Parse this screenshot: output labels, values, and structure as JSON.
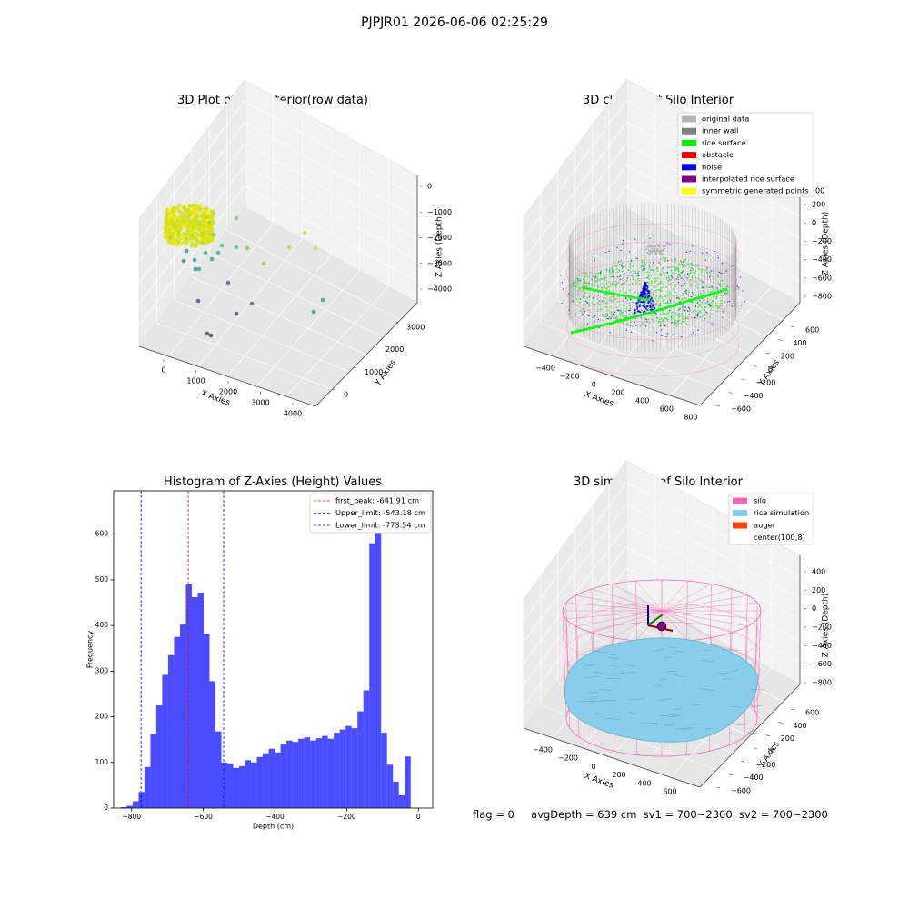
{
  "figure": {
    "suptitle": "PJPJR01 2026-06-06 02:25:29",
    "info": {
      "flag": "flag = 0",
      "avg_depth": "avgDepth = 639 cm",
      "sv1": "sv1 = 700~2300",
      "sv2": "sv2 = 700~2300"
    }
  },
  "chart_data": [
    {
      "type": "scatter",
      "title": "3D Plot of Silo Interior(row data)",
      "xlabel": "X Axies",
      "ylabel": "Y Axies",
      "zlabel": "Z Axies (Depth)",
      "x_ticks": [
        "0",
        "1000",
        "2000",
        "3000",
        "4000"
      ],
      "y_ticks": [
        "0",
        "1000",
        "2000",
        "3000"
      ],
      "z_ticks": [
        "0",
        "−1000",
        "−2000",
        "−3000",
        "−4000"
      ],
      "colormap": "viridis"
    },
    {
      "type": "scatter",
      "title": "3D classify of Silo Interior",
      "xlabel": "X Axies",
      "ylabel": "Y Axies",
      "zlabel": "Z Axies (Depth)",
      "x_ticks": [
        "−400",
        "−200",
        "0",
        "200",
        "400",
        "600",
        "800"
      ],
      "y_ticks": [
        "−600",
        "−400",
        "−200",
        "0",
        "200",
        "400",
        "600"
      ],
      "z_ticks": [
        "200",
        "0",
        "−200",
        "−400",
        "−600",
        "−800"
      ],
      "z_ticks_partial": "00",
      "legend": [
        {
          "label": "original data",
          "color": "#b4b4b4"
        },
        {
          "label": "inner wall",
          "color": "#808080"
        },
        {
          "label": "rice surface",
          "color": "#00ee00"
        },
        {
          "label": "obstacle",
          "color": "#ee0000"
        },
        {
          "label": "noise",
          "color": "#0000ee"
        },
        {
          "label": "interpolated rice surface",
          "color": "#800080"
        },
        {
          "label": "symmetric generated points",
          "color": "#ffff00"
        }
      ]
    },
    {
      "type": "bar",
      "title": "Histogram of Z-Axies (Height) Values",
      "xlabel": "Depth (cm)",
      "ylabel": "Frequency",
      "xlim": [
        -850,
        40
      ],
      "ylim": [
        0,
        695
      ],
      "x_ticks": [
        -800,
        -600,
        -400,
        -200,
        0
      ],
      "x_tick_labels": [
        "−800",
        "−600",
        "−400",
        "−200",
        "0"
      ],
      "y_ticks": [
        0,
        100,
        200,
        300,
        400,
        500,
        600
      ],
      "bin_start": -830,
      "bin_width": 16.5,
      "values": [
        2,
        5,
        15,
        35,
        90,
        162,
        225,
        292,
        335,
        375,
        402,
        490,
        462,
        472,
        382,
        278,
        168,
        100,
        98,
        88,
        92,
        105,
        100,
        112,
        120,
        130,
        122,
        140,
        148,
        145,
        152,
        155,
        148,
        153,
        158,
        152,
        165,
        172,
        180,
        175,
        212,
        258,
        580,
        660,
        165,
        95,
        58,
        28,
        113
      ],
      "bar_color": "#0000ff",
      "legend": [
        {
          "label": "first_peak: -641.91 cm",
          "value": -641.91,
          "color": "#ff0000"
        },
        {
          "label": "Upper_limit: -543.18 cm",
          "value": -543.18,
          "color": "#0000ff"
        },
        {
          "label": "Lower_limit: -773.54 cm",
          "value": -773.54,
          "color": "#0000ff"
        }
      ]
    },
    {
      "type": "area",
      "title": "3D simulation of Silo Interior",
      "xlabel": "X Axies",
      "ylabel": "Y Axies",
      "zlabel": "Z Axies (Depth)",
      "x_ticks": [
        "−400",
        "−200",
        "0",
        "200",
        "400",
        "600"
      ],
      "y_ticks": [
        "−600",
        "−400",
        "−200",
        "0",
        "200",
        "400",
        "600"
      ],
      "z_ticks": [
        "400",
        "200",
        "0",
        "−200",
        "−400",
        "−600",
        "−800"
      ],
      "legend": [
        {
          "label": "silo",
          "color": "#ff69b4"
        },
        {
          "label": "rice simulation",
          "color": "#87ceeb"
        },
        {
          "label": "auger",
          "color": "#ff4500"
        },
        {
          "label": "center(100,8)",
          "color": ""
        }
      ]
    }
  ]
}
